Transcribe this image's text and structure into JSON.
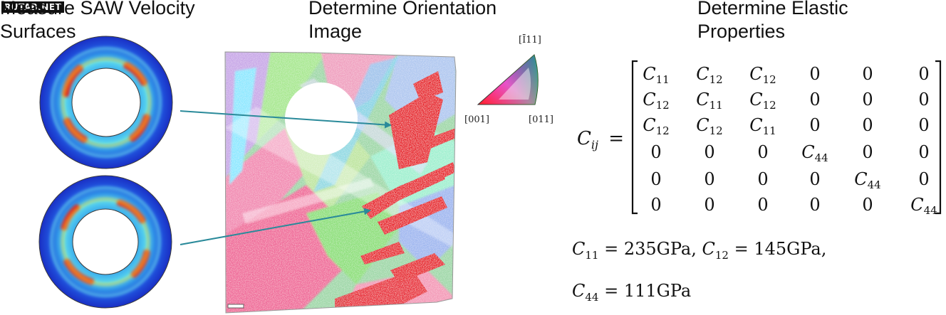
{
  "titles": {
    "saw": "Measure SAW Velocity\nSurfaces",
    "orientation": "Determine Orientation\nImage",
    "elastic": "Determine Elastic\nProperties"
  },
  "watermark": "RUTAB.NET",
  "ipf": {
    "top_label": "[Ī11]",
    "left_label": "[001]",
    "right_label": "[011]"
  },
  "matrix": {
    "lhs_symbol": "C",
    "lhs_subscript": "ij",
    "equals": "=",
    "rows": [
      [
        "C11",
        "C12",
        "C12",
        "0",
        "0",
        "0"
      ],
      [
        "C12",
        "C11",
        "C12",
        "0",
        "0",
        "0"
      ],
      [
        "C12",
        "C12",
        "C11",
        "0",
        "0",
        "0"
      ],
      [
        "0",
        "0",
        "0",
        "C44",
        "0",
        "0"
      ],
      [
        "0",
        "0",
        "0",
        "0",
        "C44",
        "0"
      ],
      [
        "0",
        "0",
        "0",
        "0",
        "0",
        "C44"
      ]
    ]
  },
  "values": {
    "c11": "= 235GPa,",
    "c12": "= 145GPa,",
    "c44": "= 111GPa"
  },
  "colors": {
    "arrow": "#2a8a9a",
    "ebsd_red": "#e8202a",
    "ebsd_pink": "#f07fa0",
    "ebsd_green": "#8ee07a",
    "saw_blue": "#1c3fd6",
    "saw_cyan": "#4fd3f0"
  }
}
